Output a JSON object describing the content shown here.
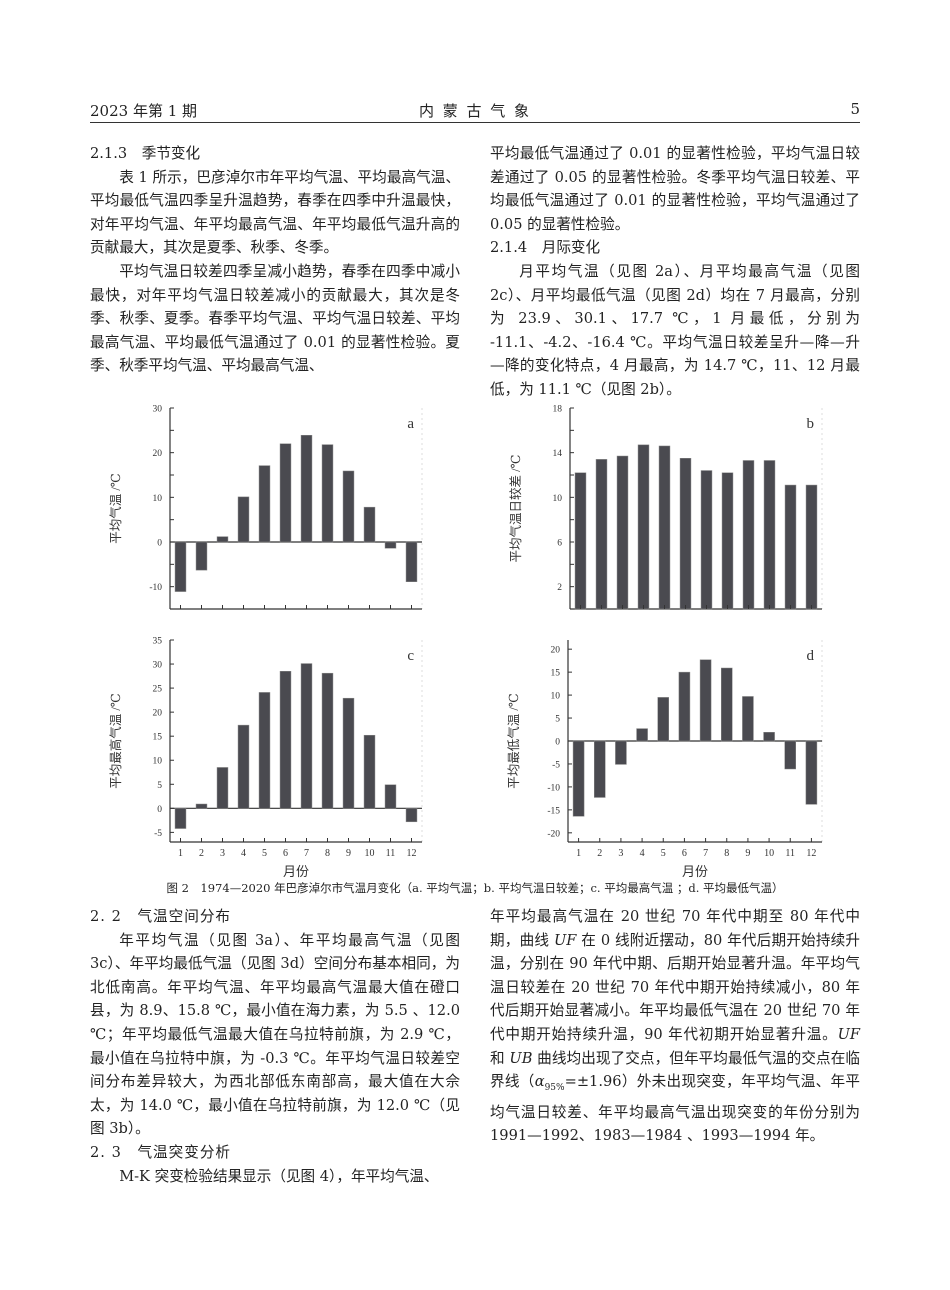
{
  "header": {
    "issue": "2023 年第 1 期",
    "journal": "内 蒙 古 气 象",
    "page": "5"
  },
  "left_top": {
    "section_213": "2.1.3　季节变化",
    "p1": "表 1 所示，巴彦淖尔市年平均气温、平均最高气温、平均最低气温四季呈升温趋势，春季在四季中升温最快，对年平均气温、年平均最高气温、年平均最低气温升高的贡献最大，其次是夏季、秋季、冬季。",
    "p2": "平均气温日较差四季呈减小趋势，春季在四季中减小最快，对年平均气温日较差减小的贡献最大，其次是冬季、秋季、夏季。春季平均气温、平均气温日较差、平均最高气温、平均最低气温通过了 0.01 的显著性检验。夏季、秋季平均气温、平均最高气温、"
  },
  "right_top": {
    "p0": "平均最低气温通过了 0.01 的显著性检验，平均气温日较差通过了 0.05 的显著性检验。冬季平均气温日较差、平均最低气温通过了 0.01 的显著性检验，平均气温通过了 0.05 的显著性检验。",
    "section_214": "2.1.4　月际变化",
    "p1": "月平均气温（见图 2a）、月平均最高气温（见图 2c）、月平均最低气温（见图 2d）均在 7 月最高，分别为 23.9、30.1、17.7 ℃，1 月最低，分别为 -11.1、-4.2、-16.4 ℃。平均气温日较差呈升—降—升—降的变化特点，4 月最高，为 14.7 ℃，11、12 月最低，为 11.1 ℃（见图 2b）。"
  },
  "figure_caption": "图 2　1974—2020 年巴彦淖尔市气温月变化（a. 平均气温；b. 平均气温日较差；c. 平均最高气温 ；d. 平均最低气温）",
  "left_bottom": {
    "section_22": "2. 2　气温空间分布",
    "p1": "年平均气温（见图 3a）、年平均最高气温（见图 3c）、年平均最低气温（见图 3d）空间分布基本相同，为北低南高。年平均气温、年平均最高气温最大值在磴口县，为 8.9、15.8 ℃，最小值在海力素，为 5.5 、12.0 ℃；年平均最低气温最大值在乌拉特前旗，为 2.9 ℃，最小值在乌拉特中旗，为 -0.3 ℃。年平均气温日较差空间分布差异较大，为西北部低东南部高，最大值在大佘太，为 14.0 ℃，最小值在乌拉特前旗，为 12.0 ℃（见图 3b）。",
    "section_23": "2. 3　气温突变分析",
    "p2": "M-K 突变检验结果显示（见图 4），年平均气温、"
  },
  "right_bottom": {
    "p1a": "年平均最高气温在 20 世纪 70 年代中期至 80 年代中期，曲线 ",
    "uf1": "UF",
    "p1b": " 在 0 线附近摆动，80 年代后期开始持续升温，分别在 90 年代中期、后期开始显著升温。年平均气温日较差在 20 世纪 70 年代中期开始持续减小，80 年代后期开始显著减小。年平均最低气温在 20 世纪 70 年代中期开始持续升温，90 年代初期开始显著升温。",
    "uf2": "UF",
    "p1c": " 和 ",
    "ub": "UB",
    "p1d": " 曲线均出现了交点，但年平均最低气温的交点在临界线（",
    "alpha": "α",
    "alpha_sub": "95%",
    "p1e": "=±1.96）外未出现突变，年平均气温、年平均气温日较差、年平均最高气温出现突变的年份分别为 1991—1992、1983—1984 、1993—1994 年。"
  },
  "chart_data": [
    {
      "type": "bar",
      "panel": "a",
      "ylabel": "平均气温 /℃",
      "xlabel": "",
      "categories": [
        "1",
        "2",
        "3",
        "4",
        "5",
        "6",
        "7",
        "8",
        "9",
        "10",
        "11",
        "12"
      ],
      "show_xticklabels": false,
      "values": [
        -11.1,
        -6.3,
        1.2,
        10.1,
        17.1,
        22.0,
        23.9,
        21.8,
        15.9,
        7.8,
        -1.4,
        -8.9
      ],
      "ylim": [
        -15,
        30
      ],
      "yticks": [
        -10,
        0,
        10,
        20,
        30
      ],
      "minor_step": 5,
      "bar_color": "#4a4a50"
    },
    {
      "type": "bar",
      "panel": "b",
      "ylabel": "平均气温日较差 /℃",
      "xlabel": "",
      "categories": [
        "1",
        "2",
        "3",
        "4",
        "5",
        "6",
        "7",
        "8",
        "9",
        "10",
        "11",
        "12"
      ],
      "show_xticklabels": false,
      "values": [
        12.2,
        13.4,
        13.7,
        14.7,
        14.6,
        13.5,
        12.4,
        12.2,
        13.3,
        13.3,
        11.1,
        11.1
      ],
      "ylim": [
        0,
        18
      ],
      "yticks": [
        2,
        6,
        10,
        14,
        18
      ],
      "minor_step": 2,
      "bar_color": "#4a4a50"
    },
    {
      "type": "bar",
      "panel": "c",
      "ylabel": "平均最高气温 /℃",
      "xlabel": "月份",
      "categories": [
        "1",
        "2",
        "3",
        "4",
        "5",
        "6",
        "7",
        "8",
        "9",
        "10",
        "11",
        "12"
      ],
      "show_xticklabels": true,
      "values": [
        -4.2,
        0.9,
        8.5,
        17.3,
        24.1,
        28.5,
        30.1,
        28.1,
        22.9,
        15.2,
        4.9,
        -2.8
      ],
      "ylim": [
        -7,
        35
      ],
      "yticks": [
        -5,
        0,
        5,
        10,
        15,
        20,
        25,
        30,
        35
      ],
      "minor_step": 5,
      "bar_color": "#4a4a50"
    },
    {
      "type": "bar",
      "panel": "d",
      "ylabel": "平均最低气温 /℃",
      "xlabel": "月份",
      "categories": [
        "1",
        "2",
        "3",
        "4",
        "5",
        "6",
        "7",
        "8",
        "9",
        "10",
        "11",
        "12"
      ],
      "show_xticklabels": true,
      "values": [
        -16.4,
        -12.3,
        -5.1,
        2.7,
        9.5,
        15.0,
        17.7,
        15.9,
        9.7,
        1.9,
        -6.1,
        -13.8
      ],
      "ylim": [
        -22,
        22
      ],
      "yticks": [
        -20,
        -15,
        -10,
        -5,
        0,
        5,
        10,
        15,
        20
      ],
      "minor_step": 5,
      "bar_color": "#4a4a50"
    }
  ]
}
